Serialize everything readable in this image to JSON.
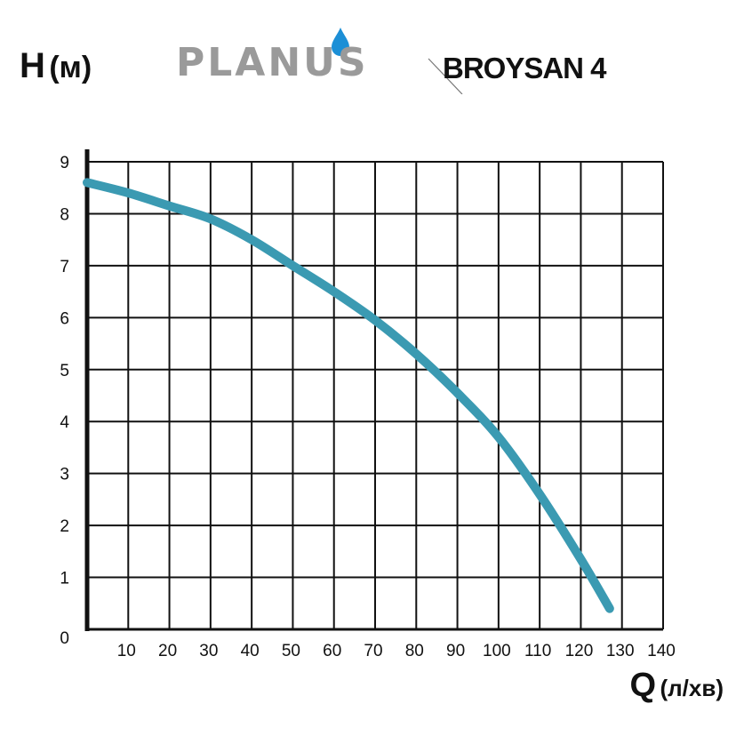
{
  "header": {
    "ylabel_main": "H",
    "ylabel_unit": "(м)",
    "logo_text": "PLANUS",
    "model": "BROYSAN 4"
  },
  "footer": {
    "xlabel_main": "Q",
    "xlabel_unit": "(л/хв)"
  },
  "colors": {
    "curve": "#3b9ab2",
    "drop": "#1c8fd6",
    "logo": "#9a9a9a",
    "grid": "#111111"
  },
  "chart_data": {
    "type": "line",
    "title": "",
    "xlabel": "Q (л/хв)",
    "ylabel": "H (м)",
    "xlim": [
      0,
      140
    ],
    "ylim": [
      0,
      9
    ],
    "x_tick_start": 10,
    "x_tick_step": 10,
    "y_tick_step": 1,
    "origin_label": "0",
    "grid": true,
    "series": [
      {
        "x": [
          0,
          10,
          20,
          30,
          40,
          50,
          60,
          70,
          80,
          90,
          100,
          110,
          120,
          127
        ],
        "y": [
          8.6,
          8.4,
          8.15,
          7.9,
          7.5,
          7.0,
          6.5,
          5.95,
          5.3,
          4.55,
          3.7,
          2.6,
          1.35,
          0.4
        ]
      }
    ]
  }
}
